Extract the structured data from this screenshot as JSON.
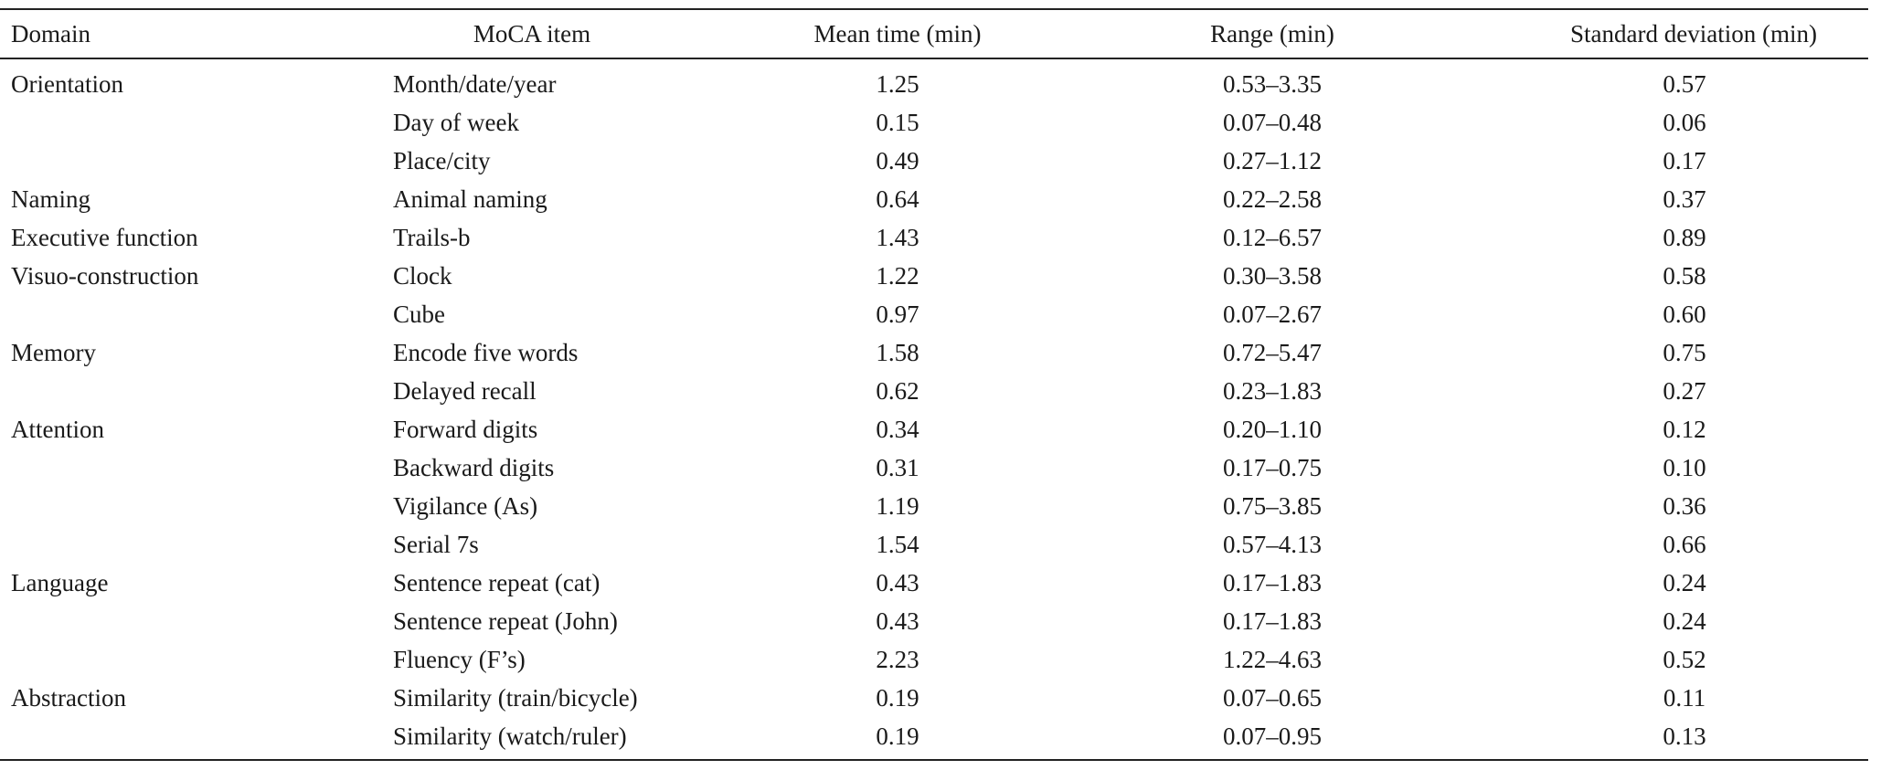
{
  "table": {
    "headers": {
      "domain": "Domain",
      "item": "MoCA item",
      "mean": "Mean time (min)",
      "range": "Range (min)",
      "sd": "Standard deviation (min)"
    },
    "rows": [
      {
        "domain": "Orientation",
        "item": "Month/date/year",
        "mean": "1.25",
        "range": "0.53–3.35",
        "sd": "0.57"
      },
      {
        "domain": "",
        "item": "Day of week",
        "mean": "0.15",
        "range": "0.07–0.48",
        "sd": "0.06"
      },
      {
        "domain": "",
        "item": "Place/city",
        "mean": "0.49",
        "range": "0.27–1.12",
        "sd": "0.17"
      },
      {
        "domain": "Naming",
        "item": "Animal naming",
        "mean": "0.64",
        "range": "0.22–2.58",
        "sd": "0.37"
      },
      {
        "domain": "Executive function",
        "item": "Trails-b",
        "mean": "1.43",
        "range": "0.12–6.57",
        "sd": "0.89"
      },
      {
        "domain": "Visuo-construction",
        "item": "Clock",
        "mean": "1.22",
        "range": "0.30–3.58",
        "sd": "0.58"
      },
      {
        "domain": "",
        "item": "Cube",
        "mean": "0.97",
        "range": "0.07–2.67",
        "sd": "0.60"
      },
      {
        "domain": "Memory",
        "item": "Encode five words",
        "mean": "1.58",
        "range": "0.72–5.47",
        "sd": "0.75"
      },
      {
        "domain": "",
        "item": "Delayed recall",
        "mean": "0.62",
        "range": "0.23–1.83",
        "sd": "0.27"
      },
      {
        "domain": "Attention",
        "item": "Forward digits",
        "mean": "0.34",
        "range": "0.20–1.10",
        "sd": "0.12"
      },
      {
        "domain": "",
        "item": "Backward digits",
        "mean": "0.31",
        "range": "0.17–0.75",
        "sd": "0.10"
      },
      {
        "domain": "",
        "item": "Vigilance (As)",
        "mean": "1.19",
        "range": "0.75–3.85",
        "sd": "0.36"
      },
      {
        "domain": "",
        "item": "Serial 7s",
        "mean": "1.54",
        "range": "0.57–4.13",
        "sd": "0.66"
      },
      {
        "domain": "Language",
        "item": "Sentence  repeat (cat)",
        "mean": "0.43",
        "range": "0.17–1.83",
        "sd": "0.24"
      },
      {
        "domain": "",
        "item": "Sentence repeat (John)",
        "mean": "0.43",
        "range": "0.17–1.83",
        "sd": "0.24"
      },
      {
        "domain": "",
        "item": "Fluency (F’s)",
        "mean": "2.23",
        "range": "1.22–4.63",
        "sd": "0.52"
      },
      {
        "domain": "Abstraction",
        "item": "Similarity (train/bicycle)",
        "mean": "0.19",
        "range": "0.07–0.65",
        "sd": "0.11"
      },
      {
        "domain": "",
        "item": "Similarity (watch/ruler)",
        "mean": "0.19",
        "range": "0.07–0.95",
        "sd": "0.13"
      }
    ]
  }
}
